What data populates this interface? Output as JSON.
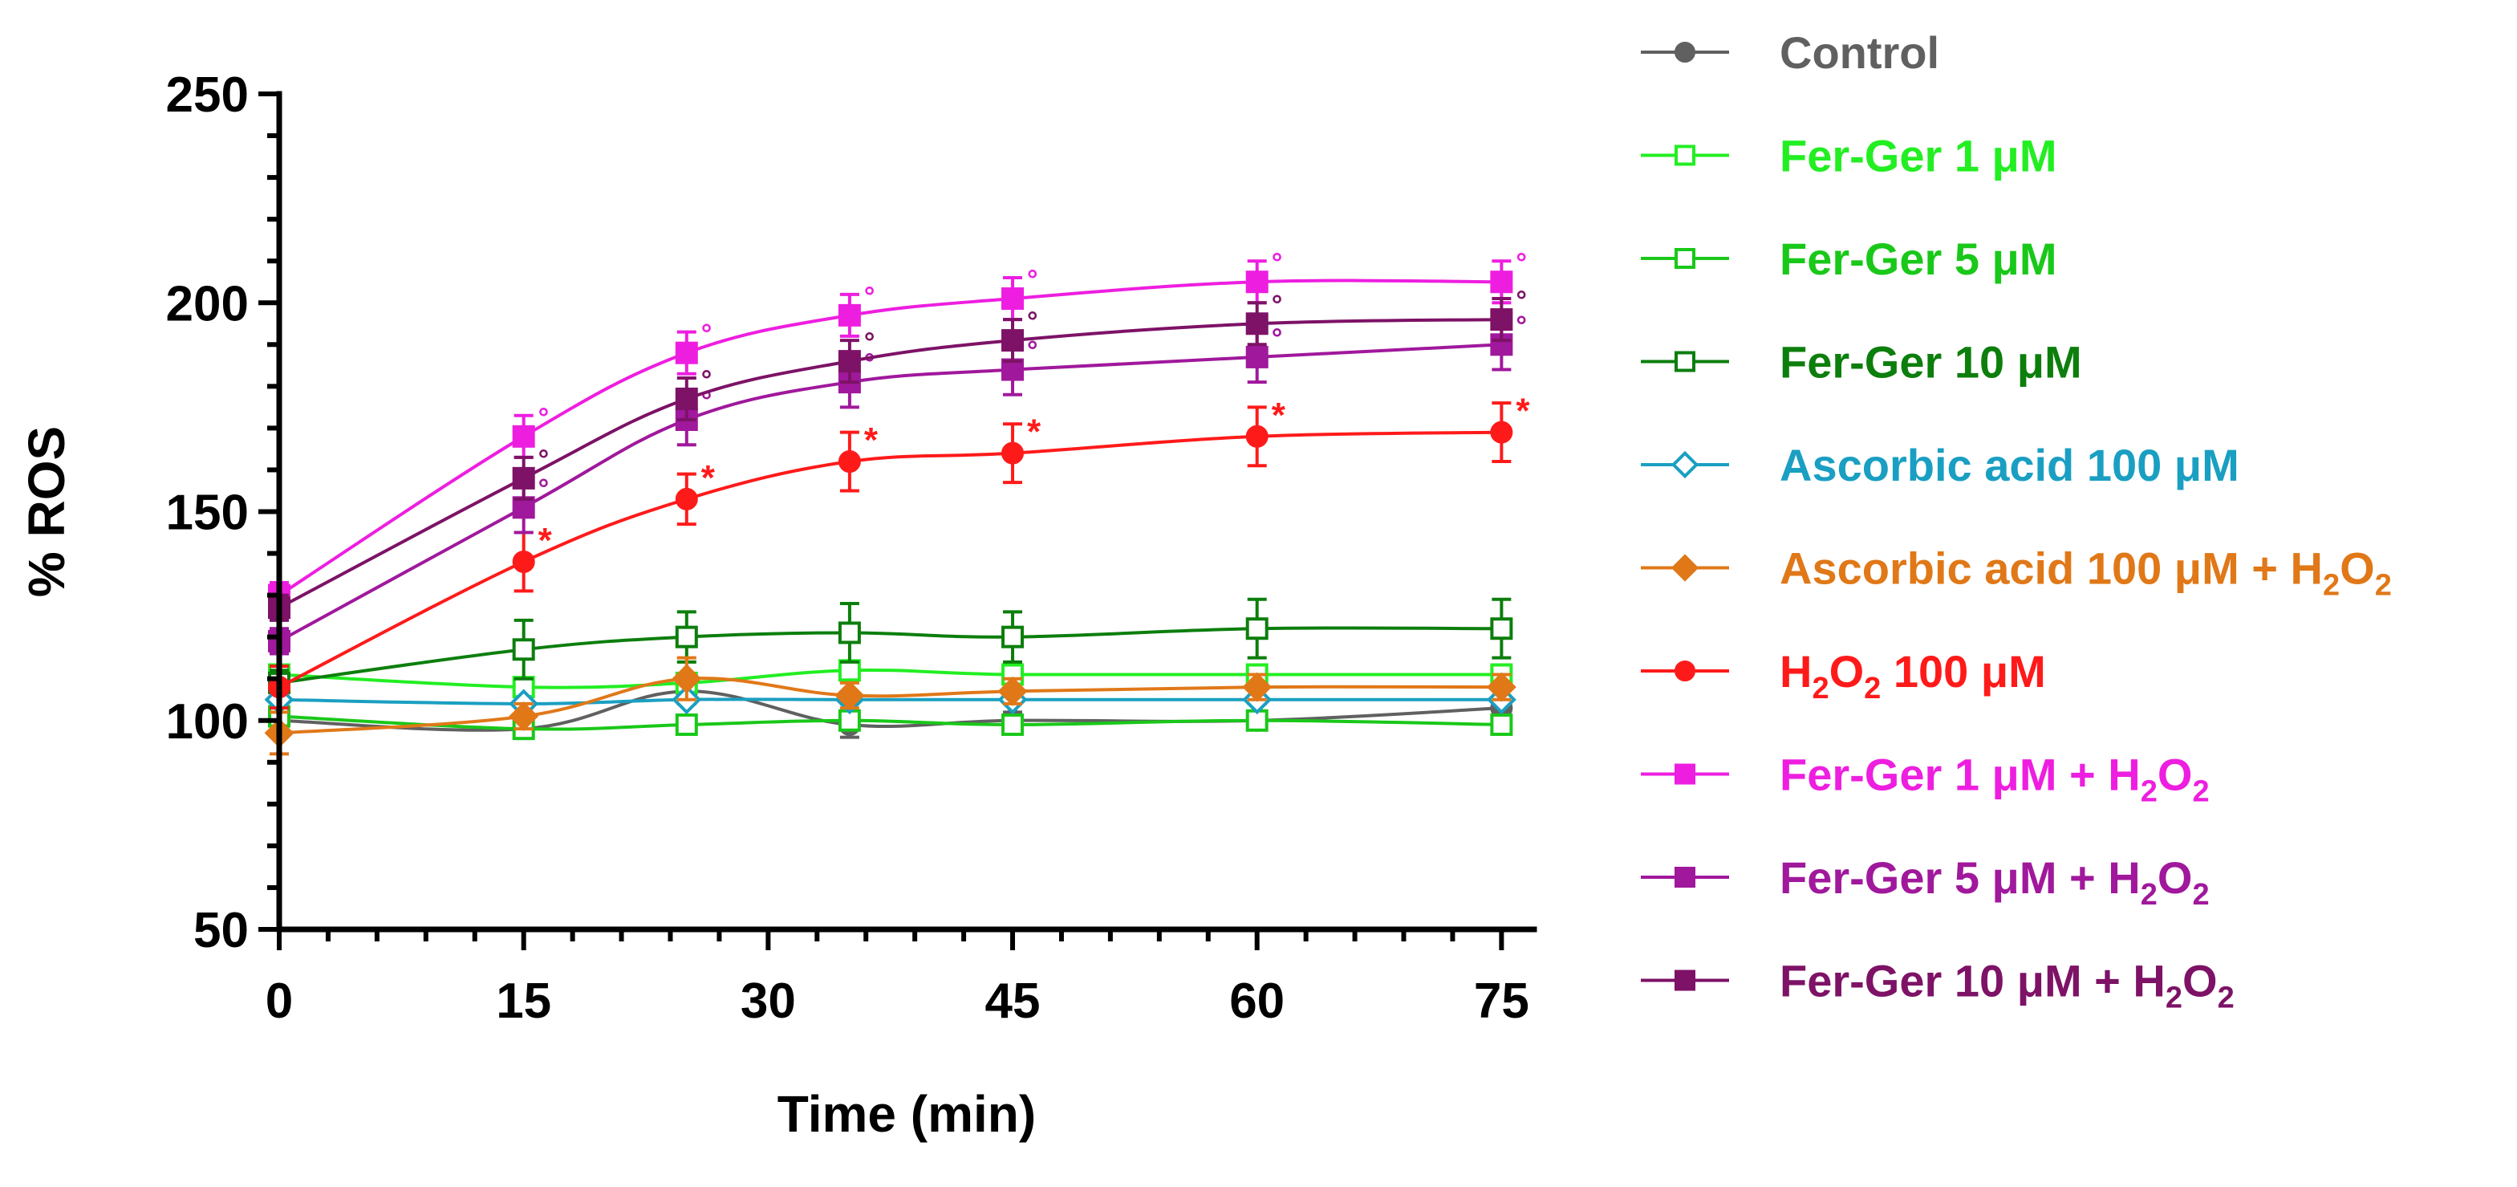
{
  "chart_data": {
    "type": "line",
    "title": "",
    "xlabel": "Time (min)",
    "ylabel": "% ROS",
    "xlim": [
      0,
      77
    ],
    "ylim": [
      50,
      250
    ],
    "x_ticks": [
      0,
      15,
      30,
      45,
      60,
      75
    ],
    "y_ticks": [
      50,
      100,
      150,
      200,
      250
    ],
    "x_minor_step": 3,
    "y_minor_step": 10,
    "grid": false,
    "legend_position": "right",
    "series": [
      {
        "name": "Control",
        "label_parts": [
          [
            "Control",
            ""
          ]
        ],
        "color": "#606060",
        "marker": "circle",
        "filled": true,
        "x": [
          0,
          15,
          25,
          35,
          45,
          60,
          75
        ],
        "y": [
          100,
          98,
          107,
          99,
          100,
          100,
          103
        ],
        "err": [
          2,
          2,
          3,
          3,
          2,
          2,
          2
        ],
        "marks": []
      },
      {
        "name": "Fer-Ger 1 μM",
        "label_parts": [
          [
            "Fer-Ger 1 μM",
            ""
          ]
        ],
        "color": "#22ee22",
        "marker": "square",
        "filled": false,
        "x": [
          0,
          15,
          25,
          35,
          45,
          60,
          75
        ],
        "y": [
          111,
          108,
          109,
          112,
          111,
          111,
          111
        ],
        "err": [
          2,
          2,
          2,
          2,
          2,
          2,
          2
        ],
        "marks": []
      },
      {
        "name": "Fer-Ger 5 μM",
        "label_parts": [
          [
            "Fer-Ger 5 μM",
            ""
          ]
        ],
        "color": "#19c819",
        "marker": "square",
        "filled": false,
        "x": [
          0,
          15,
          25,
          35,
          45,
          60,
          75
        ],
        "y": [
          101,
          98,
          99,
          100,
          99,
          100,
          99
        ],
        "err": [
          2,
          2,
          2,
          2,
          2,
          2,
          2
        ],
        "marks": []
      },
      {
        "name": "Fer-Ger 10 μM",
        "label_parts": [
          [
            "Fer-Ger 10 μM",
            ""
          ]
        ],
        "color": "#0c7e0c",
        "marker": "square",
        "filled": false,
        "x": [
          0,
          15,
          25,
          35,
          45,
          60,
          75
        ],
        "y": [
          109,
          117,
          120,
          121,
          120,
          122,
          122
        ],
        "err": [
          3,
          7,
          6,
          7,
          6,
          7,
          7
        ],
        "marks": []
      },
      {
        "name": "Ascorbic acid 100 μM",
        "label_parts": [
          [
            "Ascorbic acid 100 μM",
            ""
          ]
        ],
        "color": "#1a9fc2",
        "marker": "diamond",
        "filled": false,
        "x": [
          0,
          15,
          25,
          35,
          45,
          60,
          75
        ],
        "y": [
          105,
          104,
          105,
          105,
          105,
          105,
          105
        ],
        "err": [
          1,
          1,
          1,
          1,
          1,
          1,
          1
        ],
        "marks": []
      },
      {
        "name": "Ascorbic acid 100 μM + H2O2",
        "label_parts": [
          [
            " Ascorbic acid 100 μM + H",
            ""
          ],
          [
            "2",
            "sub"
          ],
          [
            "O",
            ""
          ],
          [
            "2",
            "sub"
          ]
        ],
        "color": "#e07818",
        "marker": "diamond",
        "filled": true,
        "x": [
          0,
          15,
          25,
          35,
          45,
          60,
          75
        ],
        "y": [
          97,
          101,
          110,
          106,
          107,
          108,
          108
        ],
        "err": [
          5,
          3,
          5,
          3,
          3,
          3,
          3
        ],
        "marks": []
      },
      {
        "name": "H2O2 100 μM",
        "label_parts": [
          [
            "H",
            ""
          ],
          [
            "2",
            "sub"
          ],
          [
            "O",
            ""
          ],
          [
            "2",
            "sub"
          ],
          [
            " 100 μM",
            ""
          ]
        ],
        "color": "#ff1a1a",
        "marker": "circle",
        "filled": true,
        "x": [
          0,
          15,
          25,
          35,
          45,
          60,
          75
        ],
        "y": [
          108,
          138,
          153,
          162,
          164,
          168,
          169
        ],
        "err": [
          5,
          7,
          6,
          7,
          7,
          7,
          7
        ],
        "marks": [
          "*",
          "*",
          "*",
          "*",
          "*",
          "*"
        ]
      },
      {
        "name": "Fer-Ger 1 μM + H2O2",
        "label_parts": [
          [
            "Fer-Ger 1 μM + H",
            ""
          ],
          [
            "2",
            "sub"
          ],
          [
            "O",
            ""
          ],
          [
            "2",
            "sub"
          ]
        ],
        "color": "#ee1ee0",
        "marker": "square",
        "filled": true,
        "x": [
          0,
          15,
          25,
          35,
          45,
          60,
          75
        ],
        "y": [
          130,
          168,
          188,
          197,
          201,
          205,
          205
        ],
        "err": [
          3,
          5,
          5,
          5,
          5,
          5,
          5
        ],
        "marks": [
          "°",
          "°",
          "°",
          "°",
          "°",
          "°"
        ]
      },
      {
        "name": "Fer-Ger 5 μM + H2O2",
        "label_parts": [
          [
            "Fer-Ger 5 μM + H",
            ""
          ],
          [
            "2",
            "sub"
          ],
          [
            "O",
            ""
          ],
          [
            "2",
            "sub"
          ]
        ],
        "color": "#a0189c",
        "marker": "square",
        "filled": true,
        "x": [
          0,
          15,
          25,
          35,
          45,
          60,
          75
        ],
        "y": [
          119,
          151,
          172,
          181,
          184,
          187,
          190
        ],
        "err": [
          3,
          6,
          6,
          6,
          6,
          6,
          6
        ],
        "marks": [
          "°",
          "°",
          "°",
          "°",
          "°",
          "°"
        ]
      },
      {
        "name": "Fer-Ger 10 μM + H2O2",
        "label_parts": [
          [
            "Fer-Ger 10 μM + H",
            ""
          ],
          [
            "2",
            "sub"
          ],
          [
            "O",
            ""
          ],
          [
            "2",
            "sub"
          ]
        ],
        "color": "#7d1266",
        "marker": "square",
        "filled": true,
        "x": [
          0,
          15,
          25,
          35,
          45,
          60,
          75
        ],
        "y": [
          127,
          158,
          177,
          186,
          191,
          195,
          196
        ],
        "err": [
          3,
          5,
          5,
          5,
          5,
          5,
          5
        ],
        "marks": [
          "°",
          "°",
          "°",
          "°",
          "°",
          "°"
        ]
      }
    ]
  }
}
